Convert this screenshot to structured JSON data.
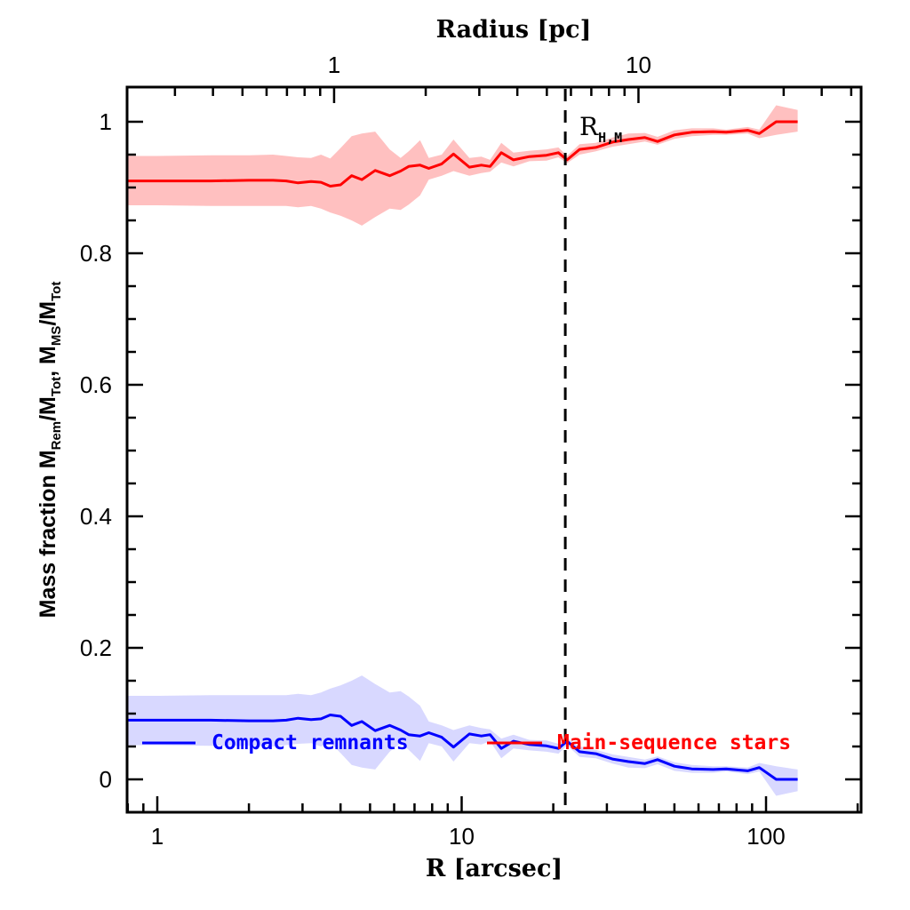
{
  "chart_data": {
    "type": "line",
    "xlabel": "R [arcsec]",
    "top_xlabel": "Radius [pc]",
    "ylabel_parts": {
      "prefix": "Mass fraction  M",
      "sub1": "Rem",
      "mid1": "/M",
      "sub2": "Tot",
      "mid2": ",  M",
      "sub3": "MS",
      "mid3": "/M",
      "sub4": "Tot"
    },
    "xscale": "log",
    "xlim": [
      0.8,
      200
    ],
    "ylim": [
      -0.05,
      1.05
    ],
    "x_ticks": [
      {
        "value": 1,
        "label": "1"
      },
      {
        "value": 10,
        "label": "10"
      },
      {
        "value": 100,
        "label": "100"
      }
    ],
    "top_ticks": [
      {
        "value_pc": 1,
        "label": "1"
      },
      {
        "value_pc": 10,
        "label": "10"
      }
    ],
    "top_axis_scale_pc_per_arcsec": 0.2625,
    "y_ticks": [
      {
        "value": 0,
        "label": "0"
      },
      {
        "value": 0.2,
        "label": "0.2"
      },
      {
        "value": 0.4,
        "label": "0.4"
      },
      {
        "value": 0.6,
        "label": "0.6"
      },
      {
        "value": 0.8,
        "label": "0.8"
      },
      {
        "value": 1,
        "label": "1"
      }
    ],
    "x": [
      0.8,
      1.0,
      1.5,
      2.0,
      2.4,
      2.65,
      2.9,
      3.2,
      3.45,
      3.7,
      4.0,
      4.35,
      4.7,
      5.2,
      5.8,
      6.3,
      6.7,
      7.3,
      7.8,
      8.6,
      9.4,
      10.6,
      11.6,
      12.4,
      13.5,
      14.8,
      16.7,
      19.0,
      20.8,
      22.2,
      24.4,
      27.6,
      31.3,
      35.3,
      40.0,
      44.0,
      50.0,
      57.0,
      67.0,
      74.0,
      87.0,
      95.0,
      108.0,
      127.0
    ],
    "series": [
      {
        "name": "Main-sequence stars",
        "color": "#ff0000",
        "band_color": "#ffc0c0",
        "values": [
          0.91,
          0.91,
          0.91,
          0.911,
          0.911,
          0.91,
          0.907,
          0.909,
          0.908,
          0.902,
          0.904,
          0.918,
          0.912,
          0.926,
          0.918,
          0.925,
          0.932,
          0.934,
          0.929,
          0.936,
          0.951,
          0.931,
          0.934,
          0.932,
          0.953,
          0.942,
          0.947,
          0.949,
          0.953,
          0.942,
          0.958,
          0.961,
          0.969,
          0.973,
          0.976,
          0.97,
          0.98,
          0.984,
          0.985,
          0.984,
          0.987,
          0.982,
          1.0,
          1.0
        ],
        "lower": [
          0.873,
          0.873,
          0.872,
          0.872,
          0.872,
          0.872,
          0.87,
          0.872,
          0.868,
          0.862,
          0.857,
          0.85,
          0.842,
          0.855,
          0.868,
          0.866,
          0.874,
          0.888,
          0.912,
          0.918,
          0.925,
          0.918,
          0.922,
          0.924,
          0.938,
          0.932,
          0.94,
          0.941,
          0.946,
          0.937,
          0.95,
          0.955,
          0.962,
          0.966,
          0.97,
          0.965,
          0.974,
          0.978,
          0.98,
          0.98,
          0.982,
          0.975,
          0.98,
          0.985
        ],
        "upper": [
          0.948,
          0.948,
          0.949,
          0.949,
          0.95,
          0.948,
          0.946,
          0.945,
          0.95,
          0.944,
          0.96,
          0.978,
          0.982,
          0.985,
          0.958,
          0.945,
          0.955,
          0.972,
          0.945,
          0.95,
          0.973,
          0.945,
          0.947,
          0.942,
          0.968,
          0.953,
          0.956,
          0.958,
          0.961,
          0.948,
          0.966,
          0.968,
          0.976,
          0.982,
          0.983,
          0.977,
          0.987,
          0.99,
          0.99,
          0.988,
          0.992,
          0.988,
          1.025,
          1.018
        ]
      },
      {
        "name": "Compact remnants",
        "color": "#0000ff",
        "band_color": "#d8d8ff",
        "values": [
          0.09,
          0.09,
          0.09,
          0.089,
          0.089,
          0.09,
          0.093,
          0.091,
          0.092,
          0.098,
          0.096,
          0.082,
          0.088,
          0.074,
          0.082,
          0.075,
          0.068,
          0.066,
          0.071,
          0.064,
          0.049,
          0.069,
          0.066,
          0.068,
          0.047,
          0.058,
          0.053,
          0.051,
          0.047,
          0.058,
          0.042,
          0.039,
          0.031,
          0.027,
          0.024,
          0.03,
          0.02,
          0.016,
          0.015,
          0.016,
          0.013,
          0.018,
          0.0,
          0.0
        ],
        "lower": [
          0.052,
          0.052,
          0.051,
          0.051,
          0.05,
          0.052,
          0.054,
          0.055,
          0.05,
          0.056,
          0.04,
          0.022,
          0.018,
          0.015,
          0.042,
          0.055,
          0.045,
          0.028,
          0.055,
          0.05,
          0.027,
          0.055,
          0.053,
          0.058,
          0.032,
          0.047,
          0.044,
          0.042,
          0.039,
          0.052,
          0.034,
          0.032,
          0.024,
          0.018,
          0.017,
          0.023,
          0.013,
          0.01,
          0.01,
          0.012,
          0.008,
          0.012,
          -0.025,
          -0.018
        ],
        "upper": [
          0.127,
          0.127,
          0.128,
          0.128,
          0.128,
          0.128,
          0.13,
          0.128,
          0.132,
          0.138,
          0.143,
          0.15,
          0.158,
          0.145,
          0.132,
          0.134,
          0.126,
          0.112,
          0.088,
          0.082,
          0.075,
          0.082,
          0.078,
          0.076,
          0.062,
          0.068,
          0.06,
          0.059,
          0.054,
          0.063,
          0.05,
          0.045,
          0.038,
          0.034,
          0.03,
          0.035,
          0.026,
          0.022,
          0.02,
          0.02,
          0.018,
          0.025,
          0.02,
          0.015
        ]
      }
    ],
    "legend": [
      {
        "label": "Compact remnants",
        "color": "#0000ff",
        "position": "lower-left"
      },
      {
        "label": "Main-sequence stars",
        "color": "#ff0000",
        "position": "lower-center"
      }
    ],
    "annotations": [
      {
        "type": "vline",
        "x": 21.9,
        "style": "dashed",
        "label_main": "R",
        "label_sub": "H,M"
      }
    ],
    "grid": false
  }
}
